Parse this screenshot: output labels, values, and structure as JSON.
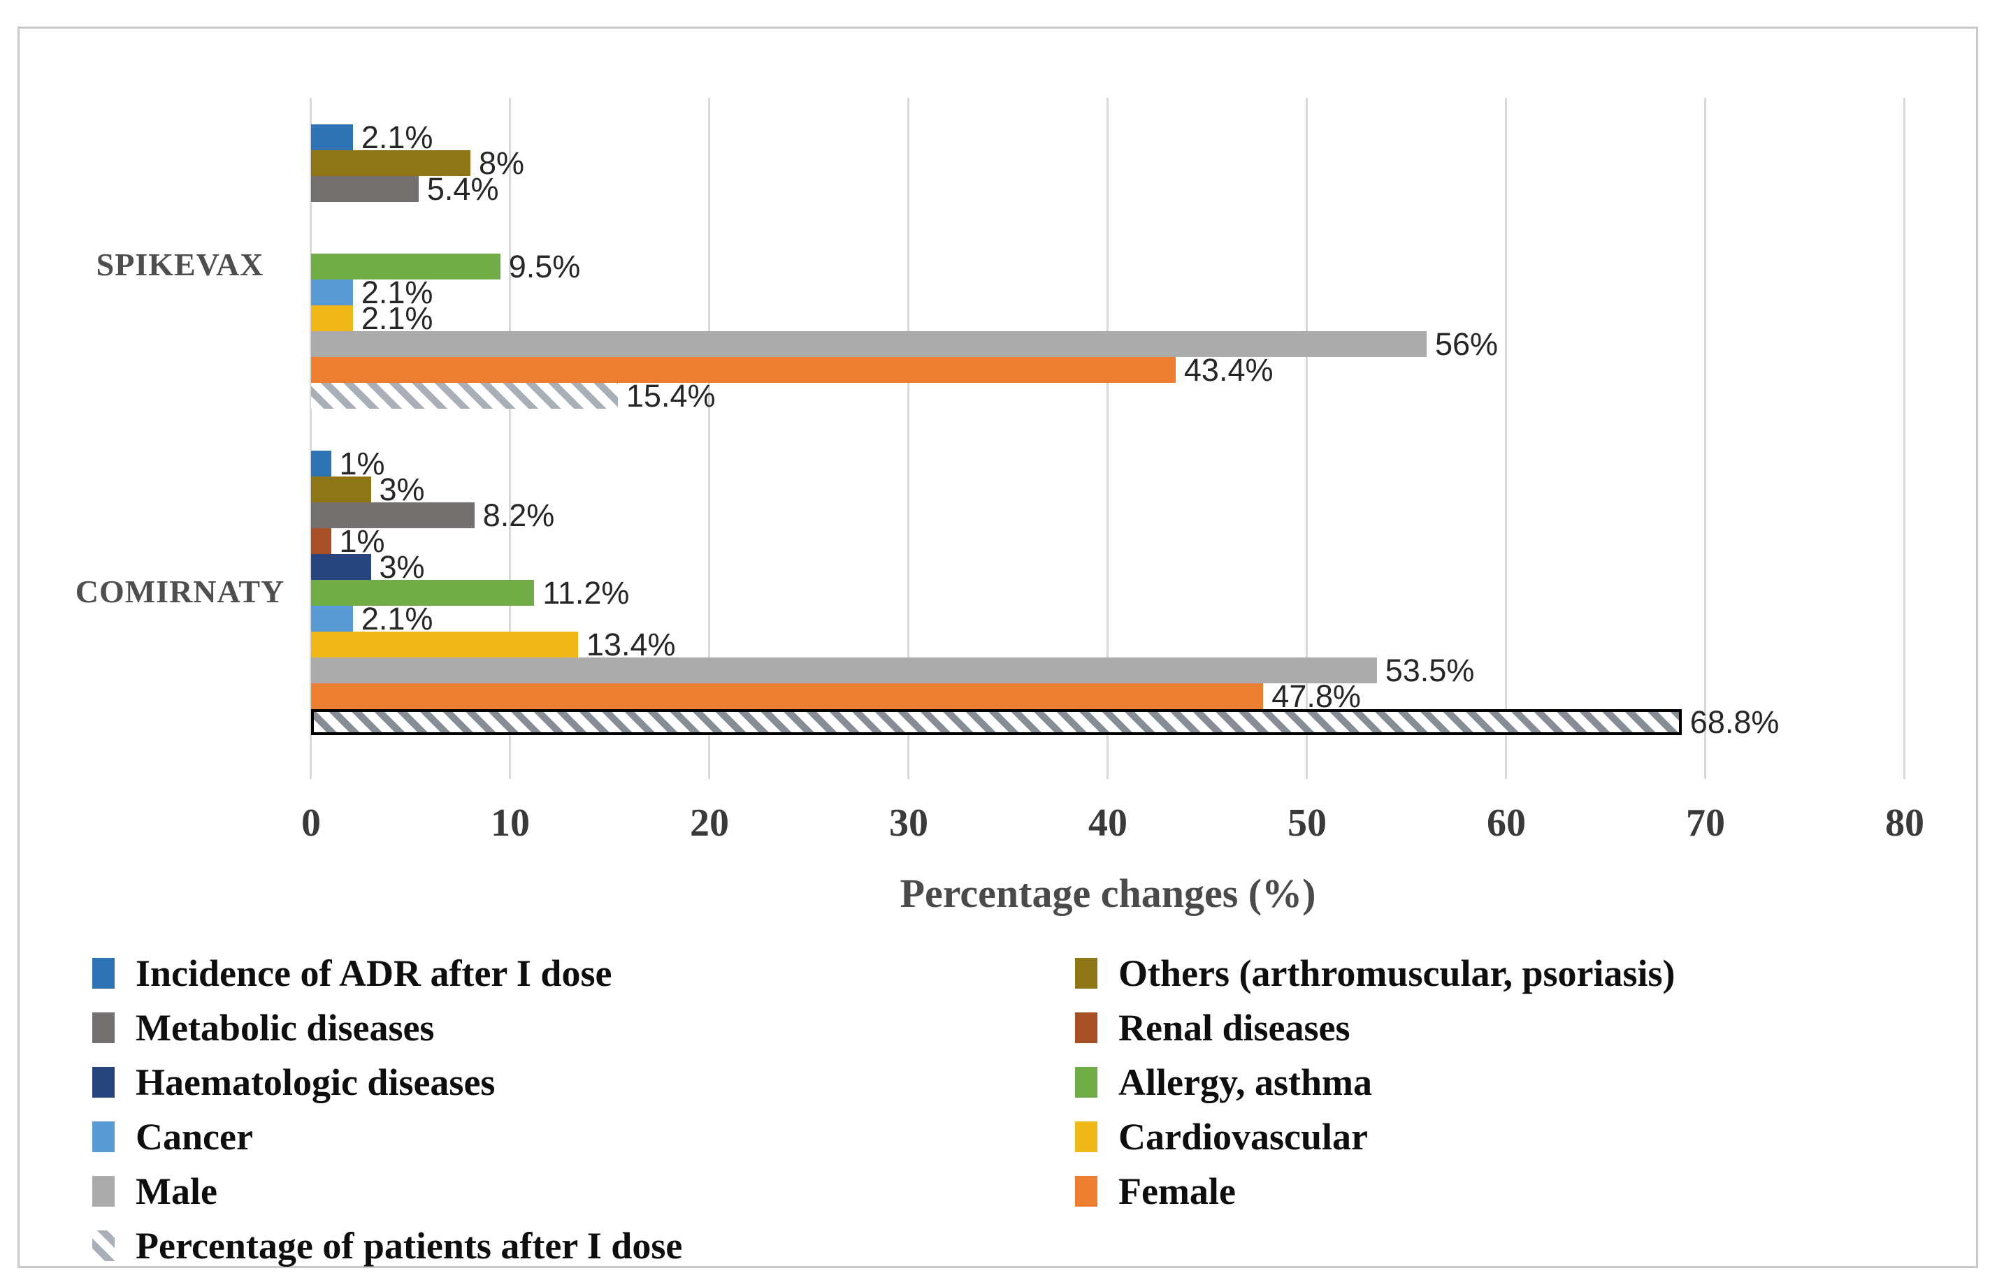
{
  "figure": {
    "border_color": "#C9C9C9",
    "background": "#ffffff"
  },
  "chart_data": {
    "type": "bar",
    "orientation": "horizontal",
    "title": "",
    "xlabel": "Percentage changes (%)",
    "ylabel": "",
    "xlim": [
      0,
      80
    ],
    "xticks": [
      0,
      10,
      20,
      30,
      40,
      50,
      60,
      70,
      80
    ],
    "grid": "vertical",
    "grid_color": "#D9D9D9",
    "legend_position": "bottom",
    "categories": [
      "SPIKEVAX",
      "COMIRNATY"
    ],
    "series": [
      {
        "name": "Incidence of ADR after I dose",
        "color": "#2E74B5",
        "values": [
          2.1,
          1
        ],
        "labels": [
          "2.1%",
          "1%"
        ]
      },
      {
        "name": "Others (arthromuscular, psoriasis)",
        "color": "#8E7617",
        "values": [
          8,
          3
        ],
        "labels": [
          "8%",
          "3%"
        ]
      },
      {
        "name": "Metabolic diseases",
        "color": "#757070",
        "values": [
          5.4,
          8.2
        ],
        "labels": [
          "5.4%",
          "8.2%"
        ]
      },
      {
        "name": "Renal diseases",
        "color": "#A94F25",
        "values": [
          0,
          1
        ],
        "labels": [
          "",
          "1%"
        ]
      },
      {
        "name": "Haematologic diseases",
        "color": "#27447E",
        "values": [
          0,
          3
        ],
        "labels": [
          "",
          "3%"
        ]
      },
      {
        "name": "Allergy, asthma",
        "color": "#70AD47",
        "values": [
          9.5,
          11.2
        ],
        "labels": [
          "9.5%",
          "11.2%"
        ]
      },
      {
        "name": "Cancer",
        "color": "#5B9BD5",
        "values": [
          2.1,
          2.1
        ],
        "labels": [
          "2.1%",
          "2.1%"
        ]
      },
      {
        "name": "Cardiovascular",
        "color": "#F0B717",
        "values": [
          2.1,
          13.4
        ],
        "labels": [
          "2.1%",
          "13.4%"
        ]
      },
      {
        "name": "Male",
        "color": "#ABABAB",
        "values": [
          56,
          53.5
        ],
        "labels": [
          "56%",
          "53.5%"
        ]
      },
      {
        "name": "Female",
        "color": "#ED7D31",
        "values": [
          43.4,
          47.8
        ],
        "labels": [
          "43.4%",
          "47.8%"
        ]
      },
      {
        "name": "Percentage of patients after I dose",
        "hatch": true,
        "stripe_colors": [
          "#A8AFB8",
          "#868D96"
        ],
        "border_colors": [
          null,
          "#000000"
        ],
        "values": [
          15.4,
          68.8
        ],
        "labels": [
          "15.4%",
          "68.8%"
        ]
      }
    ],
    "legend": {
      "columns": [
        [
          0,
          2,
          4,
          6,
          8,
          10
        ],
        [
          1,
          3,
          5,
          7,
          9
        ]
      ]
    }
  }
}
